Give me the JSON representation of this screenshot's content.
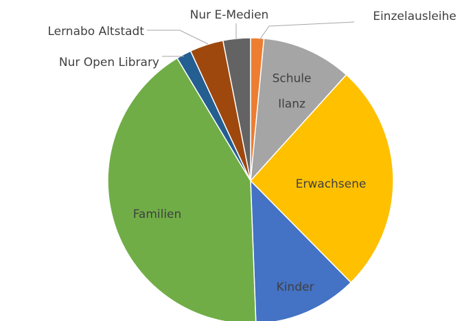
{
  "chart_data": {
    "type": "pie",
    "categories": [
      "Einzelausleihe",
      "Schule Ilanz",
      "Erwachsene",
      "Kinder",
      "Familien",
      "Nur Open Library",
      "Lernabo Altstadt",
      "Nur E-Medien"
    ],
    "values": [
      1.5,
      10.2,
      25.9,
      11.8,
      42,
      1.7,
      3.8,
      3.1
    ],
    "colors": [
      "#ed7d31",
      "#a5a5a5",
      "#ffc000",
      "#4472c4",
      "#70ad47",
      "#255e91",
      "#9e480e",
      "#636363"
    ]
  }
}
